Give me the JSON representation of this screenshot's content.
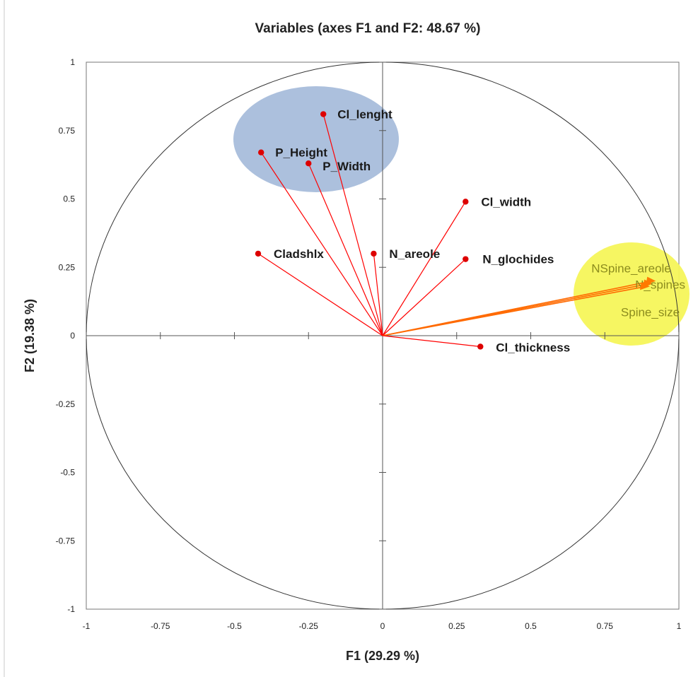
{
  "chart_data": {
    "type": "scatter",
    "title": "Variables (axes F1 and F2: 48.67 %)",
    "xlabel": "F1 (29.29 %)",
    "ylabel": "F2 (19.38 %)",
    "xlim": [
      -1,
      1
    ],
    "ylim": [
      -1,
      1
    ],
    "x_ticks": [
      "-1",
      "-0.75",
      "-0.5",
      "-0.25",
      "0",
      "0.25",
      "0.5",
      "0.75",
      "1"
    ],
    "y_ticks": [
      "1",
      "0.75",
      "0.5",
      "0.25",
      "0",
      "-0.25",
      "-0.5",
      "-0.75",
      "-1"
    ],
    "grid": false,
    "correlation_circle": true,
    "line_color": "#ff0000",
    "point_color": "#dd0000",
    "highlight_blue_color": "#a8bddb",
    "highlight_yellow_color": "#f5f55a",
    "variables": [
      {
        "name": "Cl_lenght",
        "x": -0.2,
        "y": 0.81
      },
      {
        "name": "P_Height",
        "x": -0.41,
        "y": 0.67
      },
      {
        "name": "P_Width",
        "x": -0.25,
        "y": 0.63
      },
      {
        "name": "Cl_width",
        "x": 0.28,
        "y": 0.49
      },
      {
        "name": "Cladshlx",
        "x": -0.42,
        "y": 0.3
      },
      {
        "name": "N_areole",
        "x": -0.03,
        "y": 0.3
      },
      {
        "name": "N_glochides",
        "x": 0.28,
        "y": 0.28
      },
      {
        "name": "NSpine_areole",
        "x": 0.91,
        "y": 0.2
      },
      {
        "name": "N_spines",
        "x": 0.9,
        "y": 0.19
      },
      {
        "name": "Spine_size",
        "x": 0.89,
        "y": 0.18
      },
      {
        "name": "Cl_thickness",
        "x": 0.33,
        "y": -0.04
      }
    ]
  }
}
